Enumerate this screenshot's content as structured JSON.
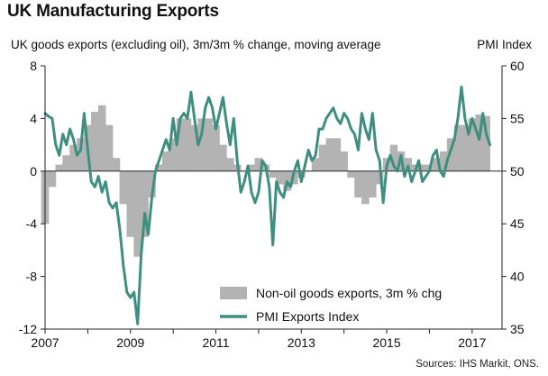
{
  "title": "UK Manufacturing Exports",
  "subtitle_left": "UK goods exports (excluding oil), 3m/3m % change, moving average",
  "subtitle_right": "PMI Index",
  "source": "Sources: IHS Markit, ONS.",
  "colors": {
    "bars": "#b3b3b3",
    "line": "#3f8f80",
    "axis": "#222222"
  },
  "chart_data": {
    "type": "bar+line",
    "title": "UK Manufacturing Exports",
    "ylabel_left": "UK goods exports (excluding oil), 3m/3m % change, moving average",
    "ylabel_right": "PMI Index",
    "xlim": [
      2007.0,
      2017.7
    ],
    "ylim_left": [
      -12,
      8
    ],
    "ylim_right": [
      35,
      60
    ],
    "x_ticks": [
      "2007",
      "2009",
      "2011",
      "2013",
      "2015",
      "2017"
    ],
    "y_left_ticks": [
      "8",
      "4",
      "0",
      "-4",
      "-8",
      "-12"
    ],
    "y_right_ticks": [
      "60",
      "55",
      "50",
      "45",
      "40",
      "35"
    ],
    "grid": false,
    "legend_position": "bottom-right",
    "series": [
      {
        "name": "Non-oil goods exports, 3m % chg",
        "type": "bar",
        "x": [
          "2007-01",
          "2007-03",
          "2007-05",
          "2007-07",
          "2007-09",
          "2007-11",
          "2008-01",
          "2008-03",
          "2008-05",
          "2008-07",
          "2008-09",
          "2008-11",
          "2009-01",
          "2009-03",
          "2009-05",
          "2009-07",
          "2009-09",
          "2009-11",
          "2010-01",
          "2010-03",
          "2010-05",
          "2010-07",
          "2010-09",
          "2010-11",
          "2011-01",
          "2011-03",
          "2011-05",
          "2011-07",
          "2011-09",
          "2011-11",
          "2012-01",
          "2012-03",
          "2012-05",
          "2012-07",
          "2012-09",
          "2012-11",
          "2013-01",
          "2013-03",
          "2013-05",
          "2013-07",
          "2013-09",
          "2013-11",
          "2014-01",
          "2014-03",
          "2014-05",
          "2014-07",
          "2014-09",
          "2014-11",
          "2015-01",
          "2015-03",
          "2015-05",
          "2015-07",
          "2015-09",
          "2015-11",
          "2016-01",
          "2016-03",
          "2016-05",
          "2016-07",
          "2016-09",
          "2016-11",
          "2017-01",
          "2017-03",
          "2017-05"
        ],
        "values": [
          -4.0,
          -1.2,
          0.5,
          1.2,
          2.0,
          2.5,
          3.5,
          4.5,
          5.0,
          3.5,
          1.0,
          -2.5,
          -5.0,
          -6.5,
          -5.0,
          -2.0,
          0.5,
          1.5,
          2.5,
          4.0,
          4.0,
          3.5,
          4.0,
          4.0,
          3.5,
          2.0,
          1.0,
          0.5,
          0.0,
          0.5,
          1.0,
          0.5,
          -0.5,
          -1.0,
          -1.5,
          -1.0,
          -0.5,
          0.0,
          1.0,
          2.0,
          2.5,
          2.5,
          1.5,
          -0.5,
          -2.0,
          -2.5,
          -2.0,
          -1.0,
          1.0,
          2.0,
          1.5,
          1.0,
          0.5,
          0.5,
          0.5,
          1.0,
          1.5,
          2.5,
          3.5,
          3.5,
          4.0,
          4.3,
          4.2
        ]
      },
      {
        "name": "PMI Exports Index",
        "type": "line",
        "x": [
          "2007-01",
          "2007-02",
          "2007-03",
          "2007-04",
          "2007-05",
          "2007-06",
          "2007-07",
          "2007-08",
          "2007-09",
          "2007-10",
          "2007-11",
          "2007-12",
          "2008-01",
          "2008-02",
          "2008-03",
          "2008-04",
          "2008-05",
          "2008-06",
          "2008-07",
          "2008-08",
          "2008-09",
          "2008-10",
          "2008-11",
          "2008-12",
          "2009-01",
          "2009-02",
          "2009-03",
          "2009-04",
          "2009-05",
          "2009-06",
          "2009-07",
          "2009-08",
          "2009-09",
          "2009-10",
          "2009-11",
          "2009-12",
          "2010-01",
          "2010-02",
          "2010-03",
          "2010-04",
          "2010-05",
          "2010-06",
          "2010-07",
          "2010-08",
          "2010-09",
          "2010-10",
          "2010-11",
          "2010-12",
          "2011-01",
          "2011-02",
          "2011-03",
          "2011-04",
          "2011-05",
          "2011-06",
          "2011-07",
          "2011-08",
          "2011-09",
          "2011-10",
          "2011-11",
          "2011-12",
          "2012-01",
          "2012-02",
          "2012-03",
          "2012-04",
          "2012-05",
          "2012-06",
          "2012-07",
          "2012-08",
          "2012-09",
          "2012-10",
          "2012-11",
          "2012-12",
          "2013-01",
          "2013-02",
          "2013-03",
          "2013-04",
          "2013-05",
          "2013-06",
          "2013-07",
          "2013-08",
          "2013-09",
          "2013-10",
          "2013-11",
          "2013-12",
          "2014-01",
          "2014-02",
          "2014-03",
          "2014-04",
          "2014-05",
          "2014-06",
          "2014-07",
          "2014-08",
          "2014-09",
          "2014-10",
          "2014-11",
          "2014-12",
          "2015-01",
          "2015-02",
          "2015-03",
          "2015-04",
          "2015-05",
          "2015-06",
          "2015-07",
          "2015-08",
          "2015-09",
          "2015-10",
          "2015-11",
          "2015-12",
          "2016-01",
          "2016-02",
          "2016-03",
          "2016-04",
          "2016-05",
          "2016-06",
          "2016-07",
          "2016-08",
          "2016-09",
          "2016-10",
          "2016-11",
          "2016-12",
          "2017-01",
          "2017-02",
          "2017-03",
          "2017-04",
          "2017-05",
          "2017-06"
        ],
        "values": [
          55.5,
          55.2,
          55.0,
          52.5,
          51.5,
          53.5,
          52.5,
          54.0,
          53.0,
          51.5,
          52.0,
          55.5,
          52.0,
          49.0,
          48.5,
          49.5,
          48.0,
          49.0,
          47.0,
          46.5,
          47.0,
          44.5,
          41.0,
          38.5,
          38.0,
          38.5,
          35.5,
          42.0,
          46.0,
          44.0,
          47.5,
          50.0,
          51.0,
          52.0,
          53.0,
          52.0,
          55.0,
          52.5,
          55.0,
          55.5,
          55.0,
          57.5,
          55.0,
          52.5,
          53.5,
          56.0,
          57.0,
          56.0,
          54.0,
          55.5,
          57.0,
          54.5,
          52.5,
          55.0,
          51.0,
          48.0,
          49.0,
          50.5,
          48.0,
          47.0,
          48.0,
          51.0,
          50.5,
          48.5,
          43.0,
          49.0,
          48.0,
          47.5,
          49.0,
          48.5,
          50.0,
          51.0,
          49.0,
          50.5,
          52.0,
          51.0,
          51.5,
          54.0,
          54.0,
          55.0,
          55.5,
          56.0,
          55.0,
          54.5,
          55.5,
          55.0,
          54.0,
          53.5,
          52.0,
          55.5,
          54.0,
          53.0,
          55.5,
          52.0,
          51.0,
          47.0,
          50.5,
          51.5,
          50.5,
          50.0,
          51.5,
          49.5,
          50.5,
          49.0,
          50.0,
          51.0,
          49.0,
          49.5,
          50.0,
          51.5,
          52.0,
          50.0,
          49.5,
          51.0,
          52.0,
          53.0,
          55.0,
          58.0,
          55.0,
          53.5,
          55.0,
          54.0,
          53.0,
          55.5,
          53.5,
          52.5
        ]
      }
    ]
  },
  "legend": {
    "bars_label": "Non-oil goods exports, 3m % chg",
    "line_label": "PMI Exports Index"
  }
}
